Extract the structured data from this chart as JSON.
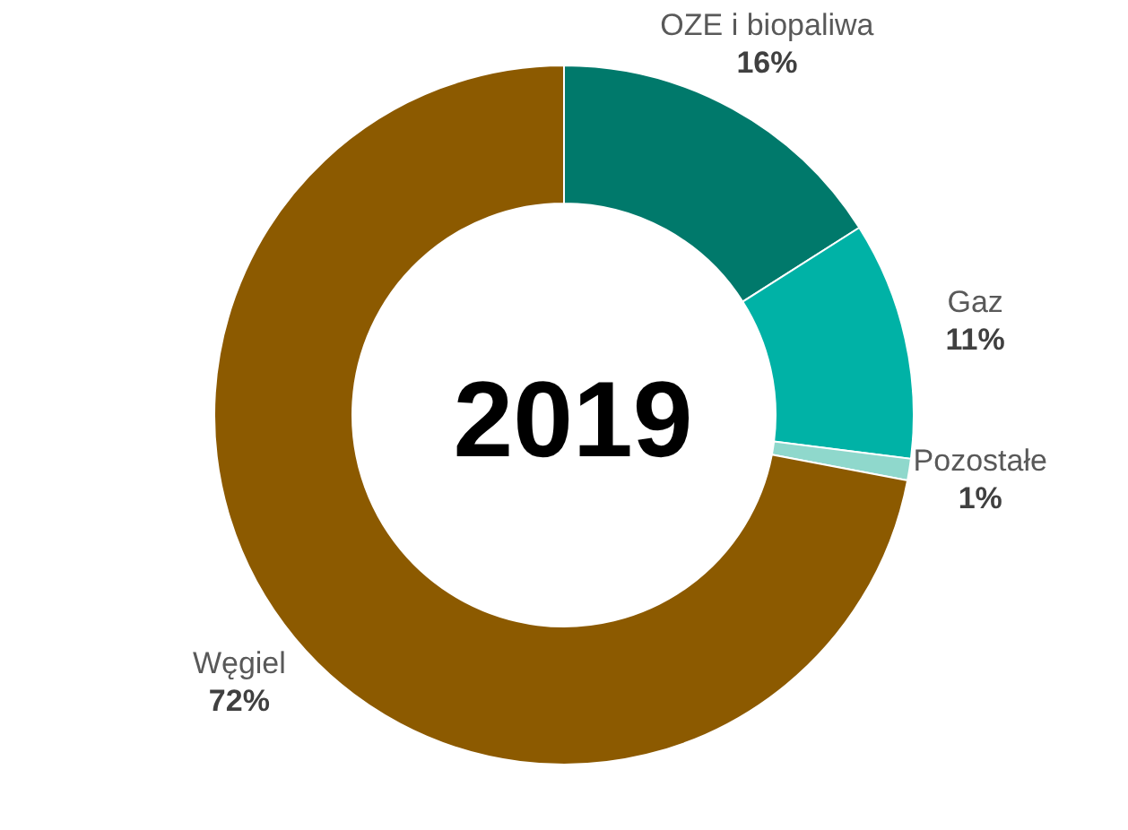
{
  "chart_data": {
    "type": "donut",
    "title": "2019",
    "categories": [
      "OZE i biopaliwa",
      "Gaz",
      "Pozostałe",
      "Węgiel"
    ],
    "values": [
      16,
      11,
      1,
      72
    ],
    "value_labels": [
      "16%",
      "11%",
      "1%",
      "72%"
    ],
    "colors": [
      "#00796b",
      "#00b2a6",
      "#8fd8cc",
      "#8c5a00"
    ],
    "legend": false
  }
}
